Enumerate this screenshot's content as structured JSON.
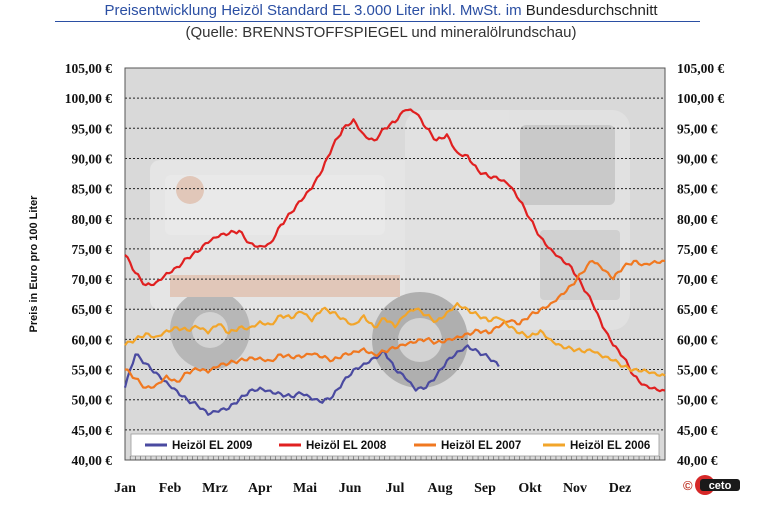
{
  "header": {
    "title_blue": "Preisentwicklung Heizöl Standard EL 3.000 Liter inkl. MwSt. im",
    "title_black": "Bundesdurchschnitt",
    "subtitle": "(Quelle: BRENNSTOFFSPIEGEL und mineralölrundschau)"
  },
  "logo": {
    "copyright": "©",
    "text": "ceto"
  },
  "chart_data": {
    "type": "line",
    "ylabel": "Preis in Euro pro 100 Liter",
    "ylim": [
      40,
      105
    ],
    "y_ticks": [
      "40,00 €",
      "45,00 €",
      "50,00 €",
      "55,00 €",
      "60,00 €",
      "65,00 €",
      "70,00 €",
      "75,00 €",
      "80,00 €",
      "85,00 €",
      "90,00 €",
      "95,00 €",
      "100,00 €",
      "105,00 €"
    ],
    "y_tick_values": [
      40,
      45,
      50,
      55,
      60,
      65,
      70,
      75,
      80,
      85,
      90,
      95,
      100,
      105
    ],
    "categories": [
      "Jan",
      "Feb",
      "Mrz",
      "Apr",
      "Mai",
      "Jun",
      "Jul",
      "Aug",
      "Sep",
      "Okt",
      "Nov",
      "Dez"
    ],
    "x_unit": "week",
    "xlim": [
      0,
      52
    ],
    "grid": true,
    "legend_position": "bottom",
    "series": [
      {
        "name": "Heizöl EL 2009",
        "color": "#4a4aa0",
        "x": [
          0,
          1,
          2,
          3,
          4,
          5,
          6,
          7,
          8,
          9,
          10,
          11,
          12,
          13,
          14,
          15,
          16,
          17,
          18,
          19,
          20,
          21,
          22,
          23,
          24,
          25,
          26,
          27,
          28,
          29,
          30,
          31,
          32,
          33,
          34,
          35,
          36
        ],
        "values": [
          52,
          57.5,
          56,
          54.5,
          53,
          51.5,
          50,
          49,
          47.5,
          48,
          48.5,
          50,
          51.5,
          52,
          51.5,
          51,
          50.5,
          51,
          50,
          49.5,
          50.5,
          53,
          55,
          56,
          57,
          58,
          55,
          53.5,
          51.5,
          52,
          54,
          56.5,
          58,
          59,
          58,
          57,
          55.5
        ]
      },
      {
        "name": "Heizöl EL 2008",
        "color": "#e02020",
        "x": [
          0,
          1,
          2,
          3,
          4,
          5,
          6,
          7,
          8,
          9,
          10,
          11,
          12,
          13,
          14,
          15,
          16,
          17,
          18,
          19,
          20,
          21,
          22,
          23,
          24,
          25,
          26,
          27,
          28,
          29,
          30,
          31,
          32,
          33,
          34,
          35,
          36,
          37,
          38,
          39,
          40,
          41,
          42,
          43,
          44,
          45,
          46,
          47,
          48,
          49,
          50,
          51,
          52
        ],
        "values": [
          74,
          71,
          69,
          69.5,
          71,
          72,
          73.5,
          74.5,
          76,
          77,
          77.5,
          78,
          76,
          75.5,
          76,
          79,
          81,
          83,
          85,
          88,
          92,
          95,
          96.5,
          94,
          93,
          95,
          96,
          98,
          97.5,
          95,
          93,
          94,
          91,
          90.5,
          88,
          87,
          86.5,
          85.5,
          83,
          80,
          77,
          75,
          73.5,
          72,
          69,
          66,
          62,
          59,
          57,
          54,
          52.5,
          52,
          51.5
        ]
      },
      {
        "name": "Heizöl EL 2007",
        "color": "#f07820",
        "x": [
          0,
          1,
          2,
          3,
          4,
          5,
          6,
          7,
          8,
          9,
          10,
          11,
          12,
          13,
          14,
          15,
          16,
          17,
          18,
          19,
          20,
          21,
          22,
          23,
          24,
          25,
          26,
          27,
          28,
          29,
          30,
          31,
          32,
          33,
          34,
          35,
          36,
          37,
          38,
          39,
          40,
          41,
          42,
          43,
          44,
          45,
          46,
          47,
          48,
          49,
          50,
          51,
          52
        ],
        "values": [
          55,
          53.5,
          52,
          52.5,
          54,
          53,
          54.5,
          55,
          54.5,
          55.5,
          56,
          56.5,
          57,
          57,
          56.5,
          57.5,
          57,
          57,
          57.5,
          57,
          56.5,
          57.5,
          58,
          58.5,
          57.5,
          58,
          58.5,
          59,
          59.5,
          60,
          59.5,
          60,
          60.5,
          61,
          61.5,
          61,
          62,
          63,
          62.5,
          64,
          65,
          66,
          67.5,
          69,
          71,
          73,
          71.5,
          70,
          72,
          73,
          72.5,
          73,
          73
        ]
      },
      {
        "name": "Heizöl EL 2006",
        "color": "#f2a52a",
        "x": [
          0,
          1,
          2,
          3,
          4,
          5,
          6,
          7,
          8,
          9,
          10,
          11,
          12,
          13,
          14,
          15,
          16,
          17,
          18,
          19,
          20,
          21,
          22,
          23,
          24,
          25,
          26,
          27,
          28,
          29,
          30,
          31,
          32,
          33,
          34,
          35,
          36,
          37,
          38,
          39,
          40,
          41,
          42,
          43,
          44,
          45,
          46,
          47,
          48,
          49,
          50,
          51,
          52
        ],
        "values": [
          59,
          60,
          61,
          60.5,
          61.5,
          62,
          61.5,
          62,
          61,
          62.5,
          61,
          62,
          62,
          63,
          62.5,
          64,
          63.5,
          64.5,
          63,
          65,
          64.5,
          63.5,
          62.5,
          64,
          62,
          63.5,
          62,
          64,
          65,
          64,
          63,
          64.5,
          66,
          65,
          64,
          63,
          63.5,
          62,
          61,
          60.5,
          61.5,
          60,
          59,
          58.5,
          58,
          58,
          57,
          56.5,
          55.5,
          55,
          55,
          54.5,
          54
        ]
      }
    ]
  }
}
